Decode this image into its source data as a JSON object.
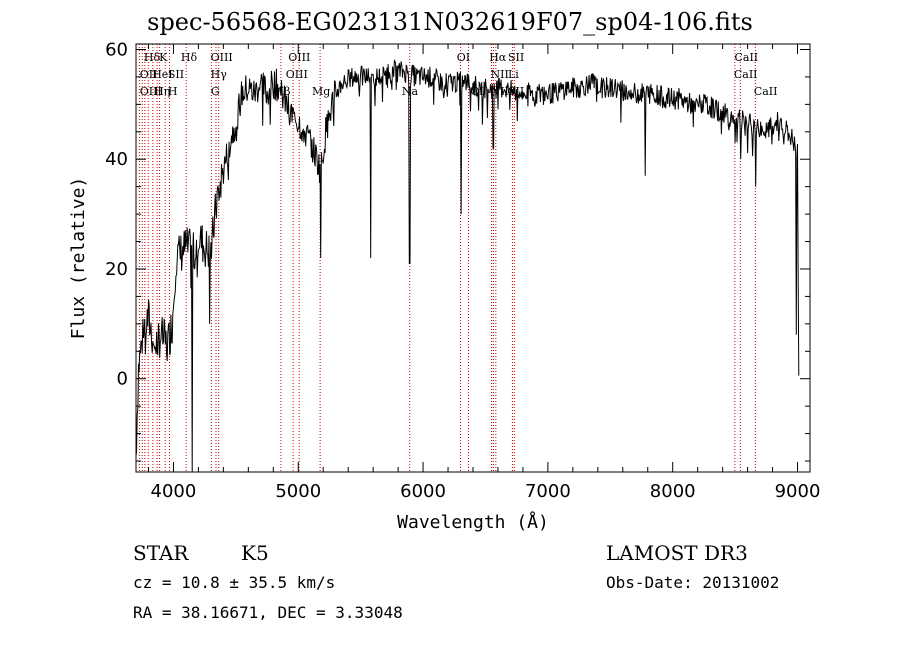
{
  "chart_data": {
    "type": "line",
    "title": "spec-56568-EG023131N032619F07_sp04-106.fits",
    "xlabel": "Wavelength (Å)",
    "ylabel": "Flux (relative)",
    "xlim": [
      3700,
      9100
    ],
    "ylim": [
      -17,
      61
    ],
    "xticks": [
      4000,
      5000,
      6000,
      7000,
      8000,
      9000
    ],
    "xtick_labels": [
      "4000",
      "5000",
      "6000",
      "7000",
      "8000",
      "9000"
    ],
    "yticks": [
      0,
      20,
      40,
      60
    ],
    "ytick_labels": [
      "0",
      "20",
      "40",
      "60"
    ],
    "continuum": [
      [
        3700,
        -14
      ],
      [
        3720,
        2
      ],
      [
        3760,
        9
      ],
      [
        3800,
        11
      ],
      [
        3850,
        6
      ],
      [
        3900,
        8
      ],
      [
        3950,
        6
      ],
      [
        3990,
        10
      ],
      [
        4020,
        22
      ],
      [
        4060,
        23
      ],
      [
        4100,
        24
      ],
      [
        4150,
        23
      ],
      [
        4200,
        26
      ],
      [
        4250,
        24
      ],
      [
        4300,
        23
      ],
      [
        4350,
        33
      ],
      [
        4400,
        38
      ],
      [
        4450,
        43
      ],
      [
        4500,
        47
      ],
      [
        4550,
        52
      ],
      [
        4600,
        53
      ],
      [
        4650,
        52
      ],
      [
        4700,
        54
      ],
      [
        4750,
        52
      ],
      [
        4800,
        54
      ],
      [
        4850,
        53
      ],
      [
        4900,
        50
      ],
      [
        4950,
        48
      ],
      [
        5000,
        47
      ],
      [
        5050,
        45
      ],
      [
        5100,
        43
      ],
      [
        5150,
        40
      ],
      [
        5180,
        38
      ],
      [
        5220,
        45
      ],
      [
        5280,
        51
      ],
      [
        5350,
        54
      ],
      [
        5450,
        55
      ],
      [
        5550,
        55
      ],
      [
        5650,
        55
      ],
      [
        5750,
        56
      ],
      [
        5850,
        56
      ],
      [
        5950,
        55
      ],
      [
        6050,
        55
      ],
      [
        6150,
        54
      ],
      [
        6250,
        54
      ],
      [
        6350,
        54
      ],
      [
        6450,
        53
      ],
      [
        6550,
        53
      ],
      [
        6650,
        53
      ],
      [
        6750,
        52
      ],
      [
        6850,
        52
      ],
      [
        6950,
        52
      ],
      [
        7050,
        52
      ],
      [
        7150,
        53
      ],
      [
        7250,
        53
      ],
      [
        7350,
        54
      ],
      [
        7450,
        53
      ],
      [
        7550,
        53
      ],
      [
        7650,
        52
      ],
      [
        7750,
        52
      ],
      [
        7850,
        52
      ],
      [
        7950,
        51
      ],
      [
        8050,
        51
      ],
      [
        8150,
        50
      ],
      [
        8250,
        50
      ],
      [
        8350,
        49
      ],
      [
        8450,
        48
      ],
      [
        8550,
        47
      ],
      [
        8650,
        46
      ],
      [
        8750,
        45
      ],
      [
        8850,
        47
      ],
      [
        8950,
        44
      ],
      [
        9000,
        41
      ],
      [
        9010,
        0
      ]
    ],
    "absorption_lines": [
      {
        "x": 4150,
        "y": -17
      },
      {
        "x": 4290,
        "y": 10
      },
      {
        "x": 5180,
        "y": 22
      },
      {
        "x": 5580,
        "y": 22
      },
      {
        "x": 5893,
        "y": 21
      },
      {
        "x": 6305,
        "y": 30
      },
      {
        "x": 6563,
        "y": 42
      },
      {
        "x": 7780,
        "y": 37
      },
      {
        "x": 8500,
        "y": 43
      },
      {
        "x": 8545,
        "y": 40
      },
      {
        "x": 8665,
        "y": 35
      },
      {
        "x": 8990,
        "y": 8
      }
    ],
    "line_markers": [
      3727,
      3750,
      3771,
      3798,
      3835,
      3869,
      3889,
      3934,
      3969,
      4102,
      4304,
      4341,
      4363,
      4861,
      4959,
      5007,
      5175,
      5893,
      6300,
      6364,
      6548,
      6563,
      6583,
      6716,
      6731,
      8498,
      8542,
      8662
    ],
    "line_labels": [
      {
        "text": "Hδ",
        "x": 3763,
        "row": 0
      },
      {
        "text": "K",
        "x": 3885,
        "row": 0
      },
      {
        "text": "Hδ",
        "x": 4060,
        "row": 0
      },
      {
        "text": "OIII",
        "x": 4298,
        "row": 0
      },
      {
        "text": "OIII",
        "x": 4920,
        "row": 0
      },
      {
        "text": "OI",
        "x": 6270,
        "row": 0
      },
      {
        "text": "Hα",
        "x": 6530,
        "row": 0
      },
      {
        "text": "SII",
        "x": 6680,
        "row": 0
      },
      {
        "text": "CaII",
        "x": 8495,
        "row": 0
      },
      {
        "text": "OII",
        "x": 3730,
        "row": 1
      },
      {
        "text": "HeI",
        "x": 3830,
        "row": 1
      },
      {
        "text": "SII",
        "x": 3955,
        "row": 1
      },
      {
        "text": "Hγ",
        "x": 4298,
        "row": 1
      },
      {
        "text": "OIII",
        "x": 4900,
        "row": 1
      },
      {
        "text": "NII",
        "x": 6540,
        "row": 1
      },
      {
        "text": "Li",
        "x": 6680,
        "row": 1
      },
      {
        "text": "CaII",
        "x": 8490,
        "row": 1
      },
      {
        "text": "OIII",
        "x": 3730,
        "row": 2
      },
      {
        "text": "Hη",
        "x": 3845,
        "row": 2
      },
      {
        "text": "H",
        "x": 3955,
        "row": 2
      },
      {
        "text": "G",
        "x": 4300,
        "row": 2
      },
      {
        "text": "Hβ",
        "x": 4810,
        "row": 2
      },
      {
        "text": "Mg",
        "x": 5110,
        "row": 2
      },
      {
        "text": "Na",
        "x": 5830,
        "row": 2
      },
      {
        "text": "OI",
        "x": 6380,
        "row": 2
      },
      {
        "text": "NII",
        "x": 6540,
        "row": 2
      },
      {
        "text": "SII",
        "x": 6680,
        "row": 2
      },
      {
        "text": "CaII",
        "x": 8650,
        "row": 2
      }
    ]
  },
  "info": {
    "object_type": "STAR",
    "subclass": "K5",
    "survey": "LAMOST DR3",
    "cz_line": "cz = 10.8 ± 35.5 km/s",
    "obs_date_line": "Obs-Date: 20131002",
    "radec_line": "RA =  38.16671, DEC =   3.33048"
  }
}
